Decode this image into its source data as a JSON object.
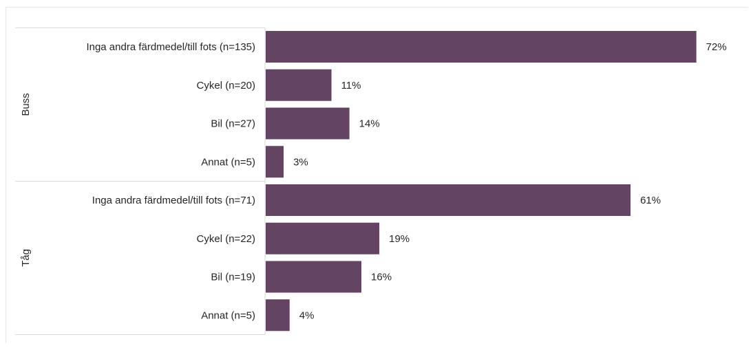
{
  "chart_data": {
    "type": "bar",
    "orientation": "horizontal",
    "unit": "%",
    "bar_color": "#634563",
    "xlim": [
      0,
      100
    ],
    "grid": false,
    "groups": [
      {
        "name": "Buss",
        "categories": [
          "Inga andra färdmedel/till fots (n=135)",
          "Cykel (n=20)",
          "Bil (n=27)",
          "Annat (n=5)"
        ],
        "values": [
          72,
          11,
          14,
          3
        ]
      },
      {
        "name": "Tåg",
        "categories": [
          "Inga andra färdmedel/till fots (n=71)",
          "Cykel (n=22)",
          "Bil (n=19)",
          "Annat (n=5)"
        ],
        "values": [
          61,
          19,
          16,
          4
        ]
      }
    ]
  }
}
